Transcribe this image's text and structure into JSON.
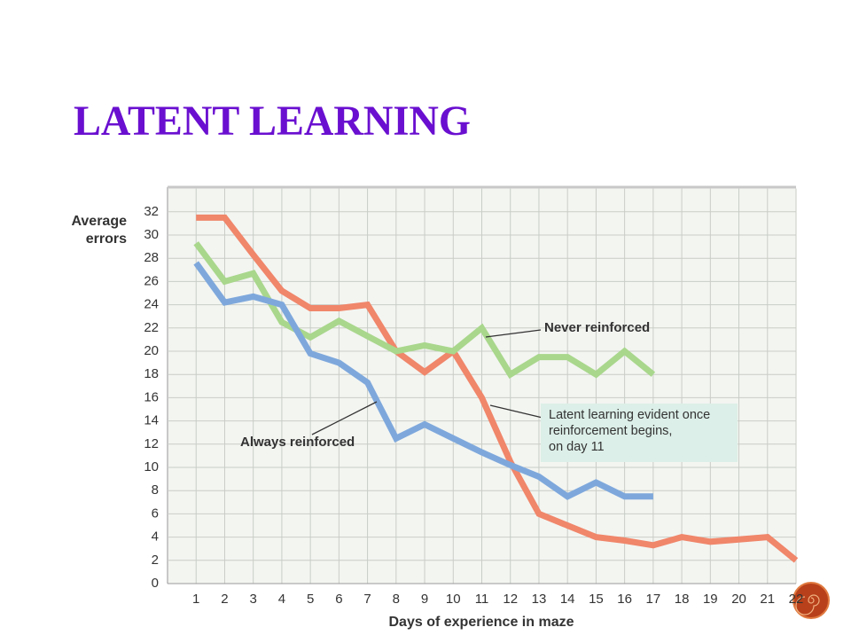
{
  "title": "LATENT LEARNING",
  "chart_data": {
    "type": "line",
    "ylabel": [
      "Average",
      "errors"
    ],
    "xlabel": "Days of experience in maze",
    "x": [
      1,
      2,
      3,
      4,
      5,
      6,
      7,
      8,
      9,
      10,
      11,
      12,
      13,
      14,
      15,
      16,
      17,
      18,
      19,
      20,
      21,
      22
    ],
    "series": [
      {
        "color": "#f0866a",
        "annotation": [
          "Latent learning evident once",
          "reinforcement begins,",
          "on day 11"
        ],
        "values": [
          31.5,
          31.5,
          28.3,
          25.2,
          23.7,
          23.7,
          24,
          20,
          18.2,
          20,
          16,
          10.5,
          6,
          5,
          4,
          3.7,
          3.3,
          4,
          3.6,
          3.8,
          4,
          2
        ]
      },
      {
        "name": "Never reinforced",
        "color": "#a9d78c",
        "values": [
          29.3,
          26,
          26.7,
          22.5,
          21.2,
          22.6,
          21.3,
          20,
          20.5,
          20,
          22,
          18,
          19.5,
          19.5,
          18,
          20,
          18,
          null,
          null,
          null,
          null,
          null
        ]
      },
      {
        "name": "Always reinforced",
        "color": "#7ea8dc",
        "values": [
          27.6,
          24.2,
          24.7,
          24,
          19.8,
          19,
          17.3,
          12.5,
          13.7,
          12.5,
          11.3,
          10.2,
          9.2,
          7.5,
          8.7,
          7.5,
          7.5,
          null,
          null,
          null,
          null,
          null
        ]
      }
    ],
    "xlim": [
      0,
      22
    ],
    "xticks": [
      1,
      2,
      3,
      4,
      5,
      6,
      7,
      8,
      9,
      10,
      11,
      12,
      13,
      14,
      15,
      16,
      17,
      18,
      19,
      20,
      21,
      22
    ],
    "ylim": [
      0,
      34
    ],
    "yticks": [
      0,
      2,
      4,
      6,
      8,
      10,
      12,
      14,
      16,
      18,
      20,
      22,
      24,
      26,
      28,
      30,
      32
    ],
    "grid": true
  }
}
